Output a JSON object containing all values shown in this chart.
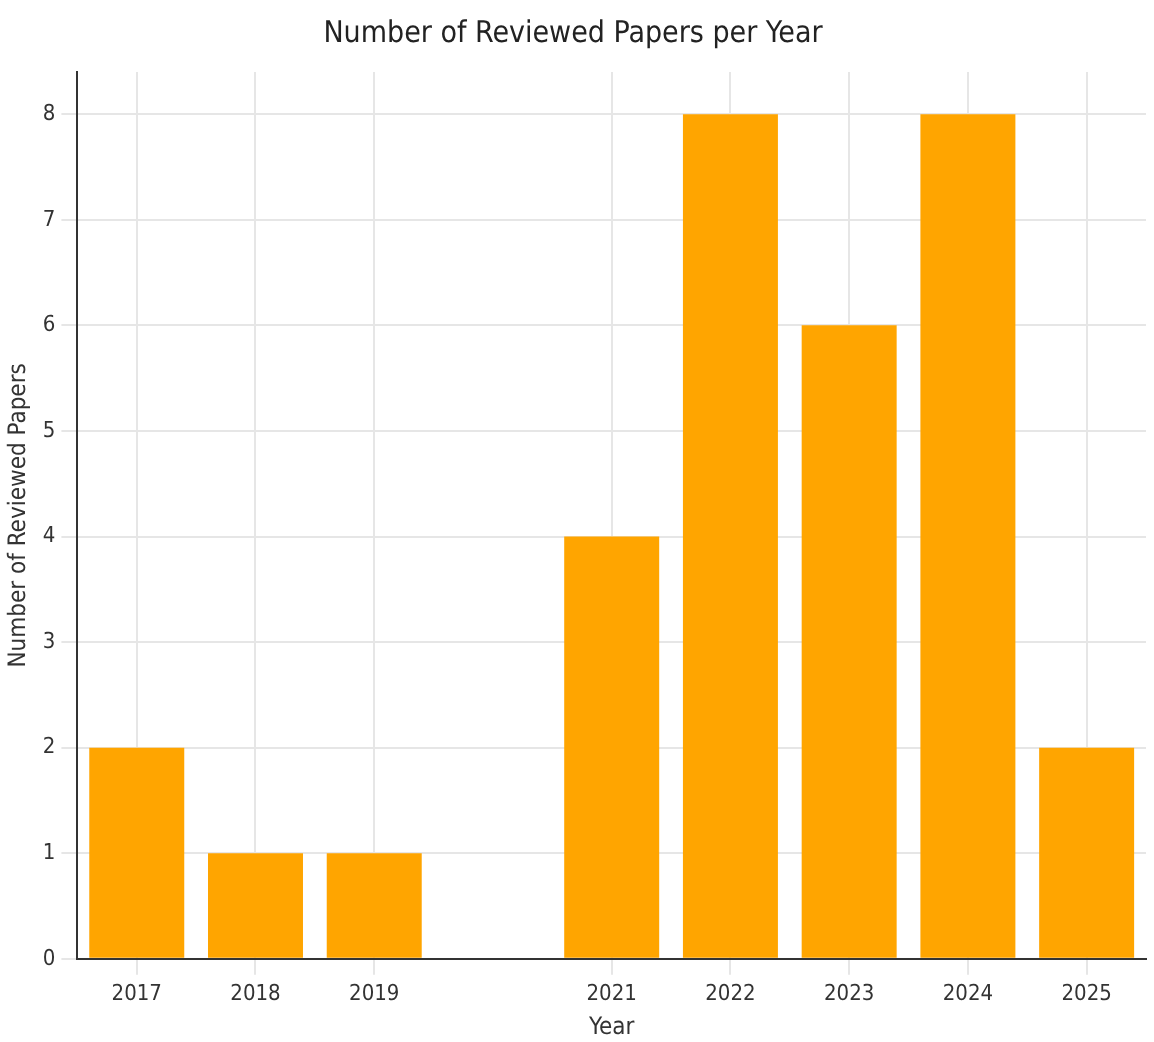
{
  "chart_data": {
    "type": "bar",
    "title": "Number of Reviewed Papers per Year",
    "xlabel": "Year",
    "ylabel": "Number of Reviewed Papers",
    "categories": [
      "2017",
      "2018",
      "2019",
      null,
      "2021",
      "2022",
      "2023",
      "2024",
      "2025"
    ],
    "values": [
      2,
      1,
      1,
      null,
      4,
      8,
      6,
      8,
      2
    ],
    "color": "#ffa500",
    "ylim": [
      0,
      8.4
    ],
    "yticks": [
      0,
      1,
      2,
      3,
      4,
      5,
      6,
      7,
      8
    ],
    "grid": true
  }
}
